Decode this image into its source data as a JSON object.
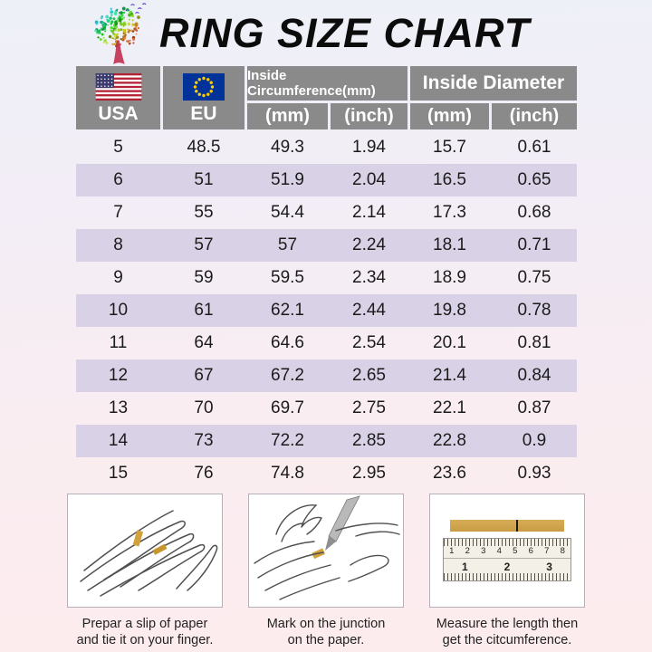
{
  "title": "RING SIZE CHART",
  "table": {
    "headers": {
      "usa": "USA",
      "eu": "EU"
    },
    "groups": [
      {
        "label": "Inside Circumference(mm)"
      },
      {
        "label": "Inside Diameter"
      }
    ],
    "sub_headers": [
      "(mm)",
      "(inch)",
      "(mm)",
      "(inch)"
    ]
  },
  "chart_data": {
    "type": "table",
    "title": "RING SIZE CHART",
    "columns": [
      "USA",
      "EU",
      "Inside Circumference (mm)",
      "Inside Circumference (inch)",
      "Inside Diameter (mm)",
      "Inside Diameter (inch)"
    ],
    "rows": [
      [
        5,
        48.5,
        49.3,
        1.94,
        15.7,
        0.61
      ],
      [
        6,
        51,
        51.9,
        2.04,
        16.5,
        0.65
      ],
      [
        7,
        55,
        54.4,
        2.14,
        17.3,
        0.68
      ],
      [
        8,
        57,
        57,
        2.24,
        18.1,
        0.71
      ],
      [
        9,
        59,
        59.5,
        2.34,
        18.9,
        0.75
      ],
      [
        10,
        61,
        62.1,
        2.44,
        19.8,
        0.78
      ],
      [
        11,
        64,
        64.6,
        2.54,
        20.1,
        0.81
      ],
      [
        12,
        67,
        67.2,
        2.65,
        21.4,
        0.84
      ],
      [
        13,
        70,
        69.7,
        2.75,
        22.1,
        0.87
      ],
      [
        14,
        73,
        72.2,
        2.85,
        22.8,
        0.9
      ],
      [
        15,
        76,
        74.8,
        2.95,
        23.6,
        0.93
      ]
    ],
    "layout_hints": {
      "shaded_rows": [
        6,
        8,
        10,
        12,
        14
      ],
      "header_rows": 2
    }
  },
  "instructions": [
    {
      "line1": "Prepar a slip of paper",
      "line2": "and tie it on your finger."
    },
    {
      "line1": "Mark on the junction",
      "line2": "on the paper."
    },
    {
      "line1": "Measure  the length then",
      "line2": "get the citcumference.",
      "ruler_cm": [
        "1",
        "2",
        "3",
        "4",
        "5",
        "6",
        "7",
        "8"
      ],
      "ruler_inch": [
        "1",
        "2",
        "3"
      ]
    }
  ],
  "icons": {
    "logo": "tree-logo",
    "usa_flag": "usa-flag",
    "eu_flag": "eu-flag"
  },
  "colors": {
    "header_bg": "#8a8a8a",
    "header_text": "#ffffff",
    "row_shade": "#d9d2e6",
    "paper_strip": "#cfa24d",
    "us_flag_red": "#b22234",
    "us_flag_blue": "#3c3b6e",
    "eu_flag_blue": "#003399",
    "eu_star_yellow": "#ffcc00",
    "title_text": "#0c0c0c"
  }
}
